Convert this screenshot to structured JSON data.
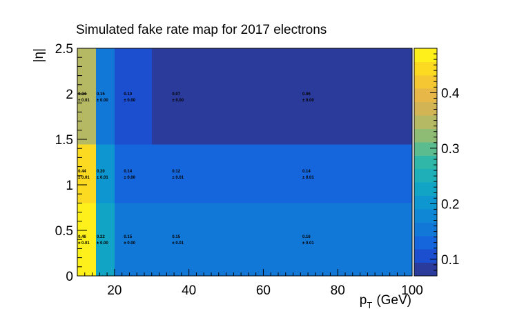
{
  "chart_data": {
    "type": "heatmap",
    "title": "Simulated fake rate map for 2017 electrons",
    "xlabel": "p",
    "xlabel_sub": "T",
    "xlabel_unit": "(GeV)",
    "ylabel": "|η|",
    "x_edges": [
      10,
      15,
      20,
      30,
      45,
      100
    ],
    "y_edges": [
      0,
      0.8,
      1.442,
      2.5
    ],
    "xlim": [
      10,
      100
    ],
    "ylim": [
      0,
      2.5
    ],
    "x_ticks": [
      20,
      40,
      60,
      80,
      100
    ],
    "x_tick_labels": [
      "20",
      "40",
      "60",
      "80",
      "100"
    ],
    "y_ticks": [
      0,
      0.5,
      1,
      1.5,
      2,
      2.5
    ],
    "y_tick_labels": [
      "0",
      "0.5",
      "1",
      "1.5",
      "2",
      "2.5"
    ],
    "values": [
      [
        0.46,
        0.22,
        0.15,
        0.15,
        0.16
      ],
      [
        0.44,
        0.2,
        0.14,
        0.12,
        0.14
      ],
      [
        0.34,
        0.15,
        0.1,
        0.07,
        0.06
      ]
    ],
    "value_labels": [
      [
        "0.46",
        "0.22",
        "0.15",
        "0.15",
        "0.16"
      ],
      [
        "0.44",
        "0.20",
        "0.14",
        "0.12",
        "0.14"
      ],
      [
        "0.34",
        "0.15",
        "0.10",
        "0.07",
        "0.06"
      ]
    ],
    "error_labels": [
      [
        "± 0.01",
        "± 0.00",
        "± 0.00",
        "± 0.01",
        "± 0.01"
      ],
      [
        "± 0.01",
        "± 0.01",
        "± 0.00",
        "± 0.01",
        "± 0.01"
      ],
      [
        "± 0.01",
        "± 0.00",
        "± 0.00",
        "± 0.00",
        "± 0.00"
      ]
    ],
    "label_x_positions": [
      10.2,
      15.2,
      22.5,
      35.5,
      70.5
    ],
    "colorbar": {
      "zmin": 0.07,
      "zmax": 0.48,
      "ticks": [
        0.1,
        0.2,
        0.3,
        0.4
      ],
      "tick_labels": [
        "0.1",
        "0.2",
        "0.3",
        "0.4"
      ],
      "palette": [
        "#2a3b9b",
        "#1c4fcf",
        "#1566dc",
        "#1278d8",
        "#0f87d4",
        "#0d96cf",
        "#11a4c4",
        "#1eafb8",
        "#31b7a8",
        "#5abc8f",
        "#8ebc74",
        "#b6b964",
        "#d2b454",
        "#e7b747",
        "#f4c733",
        "#fbda21",
        "#fef01a"
      ],
      "grid": false
    }
  }
}
